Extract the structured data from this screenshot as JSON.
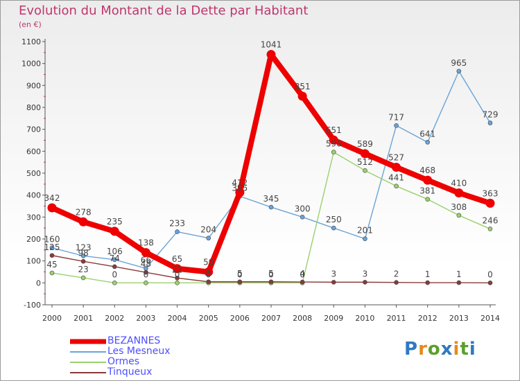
{
  "title": "Evolution du Montant de la Dette par Habitant",
  "subtitle": "(en €)",
  "logo": {
    "text": "Proxiti",
    "letter_colors": [
      "#2f79c2",
      "#e58a1c",
      "#5aa02c",
      "#2f79c2",
      "#e58a1c",
      "#5aa02c",
      "#2f79c2"
    ]
  },
  "chart_data": {
    "type": "line",
    "title": "Evolution du Montant de la Dette par Habitant",
    "ylabel": "(en €)",
    "xlabel": "",
    "ylim": [
      -100,
      1100
    ],
    "yticks": [
      -100,
      0,
      100,
      200,
      300,
      400,
      500,
      600,
      700,
      800,
      900,
      1000,
      1100
    ],
    "grid": false,
    "legend_position": "bottom-left",
    "x": [
      2000,
      2001,
      2002,
      2003,
      2004,
      2005,
      2006,
      2007,
      2008,
      2009,
      2010,
      2011,
      2012,
      2013,
      2014
    ],
    "series": [
      {
        "name": "BEZANNES",
        "color": "#ee0000",
        "emphasis": true,
        "values": [
          342,
          278,
          235,
          138,
          65,
          50,
          412,
          1041,
          851,
          651,
          589,
          527,
          468,
          410,
          363
        ]
      },
      {
        "name": "Les Mesneux",
        "color": "#6aa3d6",
        "emphasis": false,
        "values": [
          160,
          123,
          106,
          66,
          233,
          204,
          395,
          345,
          300,
          250,
          201,
          717,
          641,
          965,
          729
        ]
      },
      {
        "name": "Ormes",
        "color": "#9ad16c",
        "emphasis": false,
        "values": [
          45,
          23,
          0,
          0,
          0,
          0,
          0,
          0,
          0,
          596,
          512,
          441,
          381,
          308,
          246
        ]
      },
      {
        "name": "Tinqueux",
        "color": "#8a3a3a",
        "emphasis": false,
        "values": [
          125,
          98,
          74,
          48,
          22,
          5,
          5,
          5,
          4,
          3,
          3,
          2,
          1,
          1,
          0
        ]
      }
    ]
  },
  "legend": {
    "items": [
      {
        "label": "BEZANNES",
        "color": "#ee0000",
        "thickness": 7
      },
      {
        "label": "Les Mesneux",
        "color": "#6aa3d6",
        "thickness": 2
      },
      {
        "label": "Ormes",
        "color": "#9ad16c",
        "thickness": 2
      },
      {
        "label": "Tinqueux",
        "color": "#8a3a3a",
        "thickness": 2
      }
    ]
  }
}
